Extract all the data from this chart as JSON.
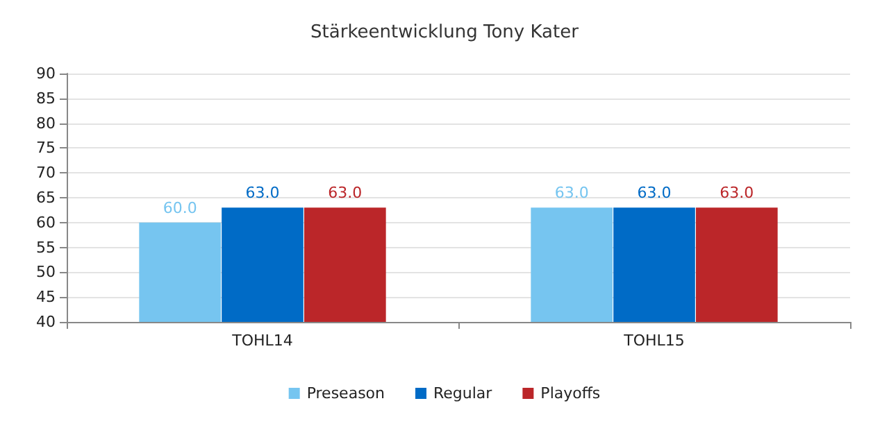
{
  "chart_data": {
    "type": "bar",
    "title": "Stärkeentwicklung Tony Kater",
    "categories": [
      "TOHL14",
      "TOHL15"
    ],
    "series": [
      {
        "name": "Preseason",
        "color": "#76c5f0",
        "values": [
          60,
          63
        ],
        "value_labels": [
          "60.0",
          "63.0"
        ]
      },
      {
        "name": "Regular",
        "color": "#006bc6",
        "values": [
          63,
          63
        ],
        "value_labels": [
          "63.0",
          "63.0"
        ]
      },
      {
        "name": "Playoffs",
        "color": "#bb2629",
        "values": [
          63,
          63
        ],
        "value_labels": [
          "63.0",
          "63.0"
        ]
      }
    ],
    "ylim": [
      40,
      90
    ],
    "yticks": [
      40,
      45,
      50,
      55,
      60,
      65,
      70,
      75,
      80,
      85,
      90
    ],
    "grid": "y",
    "legend": "bottom"
  }
}
